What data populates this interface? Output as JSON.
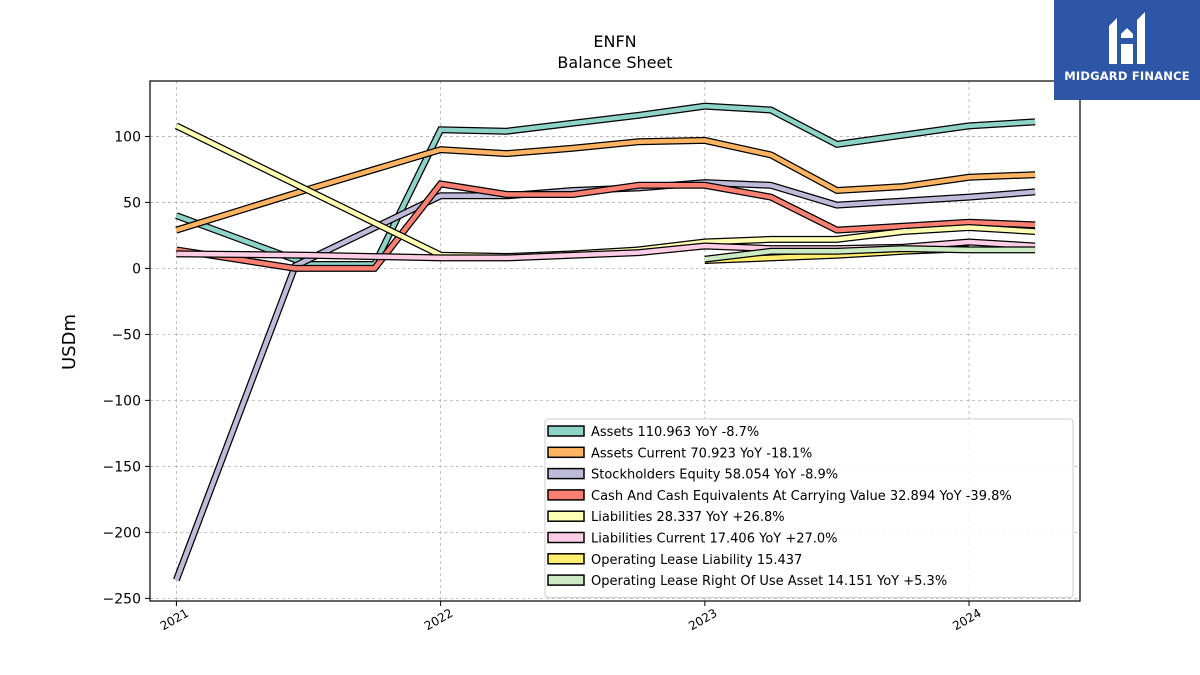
{
  "brand": {
    "name": "MIDGARD FINANCE",
    "bg": "#2d56a6",
    "mark_icon": "midgard-logo-icon"
  },
  "chart_data": {
    "type": "line",
    "title": "ENFN",
    "subtitle": "Balance  Sheet",
    "xlabel": "",
    "ylabel": "USDm",
    "xlim": [
      2020.9,
      2024.42
    ],
    "ylim": [
      -252,
      142
    ],
    "xticks": [
      {
        "value": 2021,
        "label": "2021"
      },
      {
        "value": 2022,
        "label": "2022"
      },
      {
        "value": 2023,
        "label": "2023"
      },
      {
        "value": 2024,
        "label": "2024"
      }
    ],
    "yticks": [
      {
        "value": 100,
        "label": "100"
      },
      {
        "value": 50,
        "label": "50"
      },
      {
        "value": 0,
        "label": "0"
      },
      {
        "value": -50,
        "label": "−50"
      },
      {
        "value": -100,
        "label": "−100"
      },
      {
        "value": -150,
        "label": "−150"
      },
      {
        "value": -200,
        "label": "−200"
      },
      {
        "value": -250,
        "label": "−250"
      }
    ],
    "grid": true,
    "legend_position": "bottom-right",
    "series": [
      {
        "name": "Assets",
        "legend": "Assets  110.963 YoY -8.7%",
        "color": "#8dd3c7",
        "points": [
          [
            2021.0,
            40
          ],
          [
            2021.5,
            3
          ],
          [
            2021.75,
            3
          ],
          [
            2022.0,
            105
          ],
          [
            2022.25,
            104
          ],
          [
            2022.5,
            110
          ],
          [
            2022.75,
            116
          ],
          [
            2023.0,
            123
          ],
          [
            2023.25,
            120
          ],
          [
            2023.5,
            94
          ],
          [
            2023.75,
            101
          ],
          [
            2024.0,
            108
          ],
          [
            2024.25,
            111
          ]
        ]
      },
      {
        "name": "Assets Current",
        "legend": "Assets Current  70.923 YoY -18.1%",
        "color": "#fdb462",
        "points": [
          [
            2021.0,
            29
          ],
          [
            2021.5,
            60
          ],
          [
            2021.75,
            75
          ],
          [
            2022.0,
            90
          ],
          [
            2022.25,
            87
          ],
          [
            2022.5,
            91
          ],
          [
            2022.75,
            96
          ],
          [
            2023.0,
            97
          ],
          [
            2023.25,
            86
          ],
          [
            2023.5,
            59
          ],
          [
            2023.75,
            62
          ],
          [
            2024.0,
            69
          ],
          [
            2024.25,
            71
          ]
        ]
      },
      {
        "name": "Stockholders Equity",
        "legend": "Stockholders Equity  58.054 YoY -8.9%",
        "color": "#bebada",
        "points": [
          [
            2021.0,
            -236
          ],
          [
            2021.45,
            2
          ],
          [
            2022.0,
            55
          ],
          [
            2022.25,
            55
          ],
          [
            2022.5,
            59
          ],
          [
            2022.75,
            61
          ],
          [
            2023.0,
            65
          ],
          [
            2023.25,
            63
          ],
          [
            2023.5,
            48
          ],
          [
            2023.75,
            51
          ],
          [
            2024.0,
            54
          ],
          [
            2024.25,
            58
          ]
        ]
      },
      {
        "name": "Cash And Cash Equivalents At Carrying Value",
        "legend": "Cash And Cash Equivalents At Carrying Value  32.894 YoY -39.8%",
        "color": "#fb8072",
        "points": [
          [
            2021.0,
            14
          ],
          [
            2021.45,
            0
          ],
          [
            2021.75,
            0
          ],
          [
            2022.0,
            64
          ],
          [
            2022.25,
            56
          ],
          [
            2022.5,
            56
          ],
          [
            2022.75,
            63
          ],
          [
            2023.0,
            63
          ],
          [
            2023.25,
            54
          ],
          [
            2023.5,
            29
          ],
          [
            2023.75,
            32
          ],
          [
            2024.0,
            35
          ],
          [
            2024.25,
            33
          ]
        ]
      },
      {
        "name": "Liabilities",
        "legend": "Liabilities  28.337 YoY +26.8%",
        "color": "#ffffb3",
        "points": [
          [
            2021.0,
            108
          ],
          [
            2022.0,
            10
          ],
          [
            2022.25,
            9
          ],
          [
            2022.5,
            11
          ],
          [
            2022.75,
            14
          ],
          [
            2023.0,
            20
          ],
          [
            2023.25,
            22
          ],
          [
            2023.5,
            22
          ],
          [
            2023.75,
            28
          ],
          [
            2024.0,
            31
          ],
          [
            2024.25,
            28
          ]
        ]
      },
      {
        "name": "Liabilities Current",
        "legend": "Liabilities Current  17.406 YoY +27.0%",
        "color": "#fccde5",
        "points": [
          [
            2021.0,
            11
          ],
          [
            2021.5,
            10
          ],
          [
            2022.0,
            8
          ],
          [
            2022.25,
            8
          ],
          [
            2022.5,
            10
          ],
          [
            2022.75,
            12
          ],
          [
            2023.0,
            17
          ],
          [
            2023.25,
            15
          ],
          [
            2023.5,
            15
          ],
          [
            2023.75,
            16
          ],
          [
            2024.0,
            20
          ],
          [
            2024.25,
            17
          ]
        ]
      },
      {
        "name": "Operating Lease Liability",
        "legend": "Operating Lease Liability  15.437",
        "color": "#ffed6f",
        "points": [
          [
            2023.0,
            6
          ],
          [
            2023.25,
            8
          ],
          [
            2023.5,
            10
          ],
          [
            2023.75,
            13
          ],
          [
            2024.0,
            15
          ]
        ]
      },
      {
        "name": "Operating Lease Right Of Use Asset",
        "legend": "Operating Lease Right Of Use Asset  14.151 YoY +5.3%",
        "color": "#ccebc5",
        "points": [
          [
            2023.0,
            7
          ],
          [
            2023.25,
            13
          ],
          [
            2023.5,
            13
          ],
          [
            2023.75,
            15
          ],
          [
            2024.0,
            14
          ],
          [
            2024.25,
            14
          ]
        ]
      }
    ]
  }
}
